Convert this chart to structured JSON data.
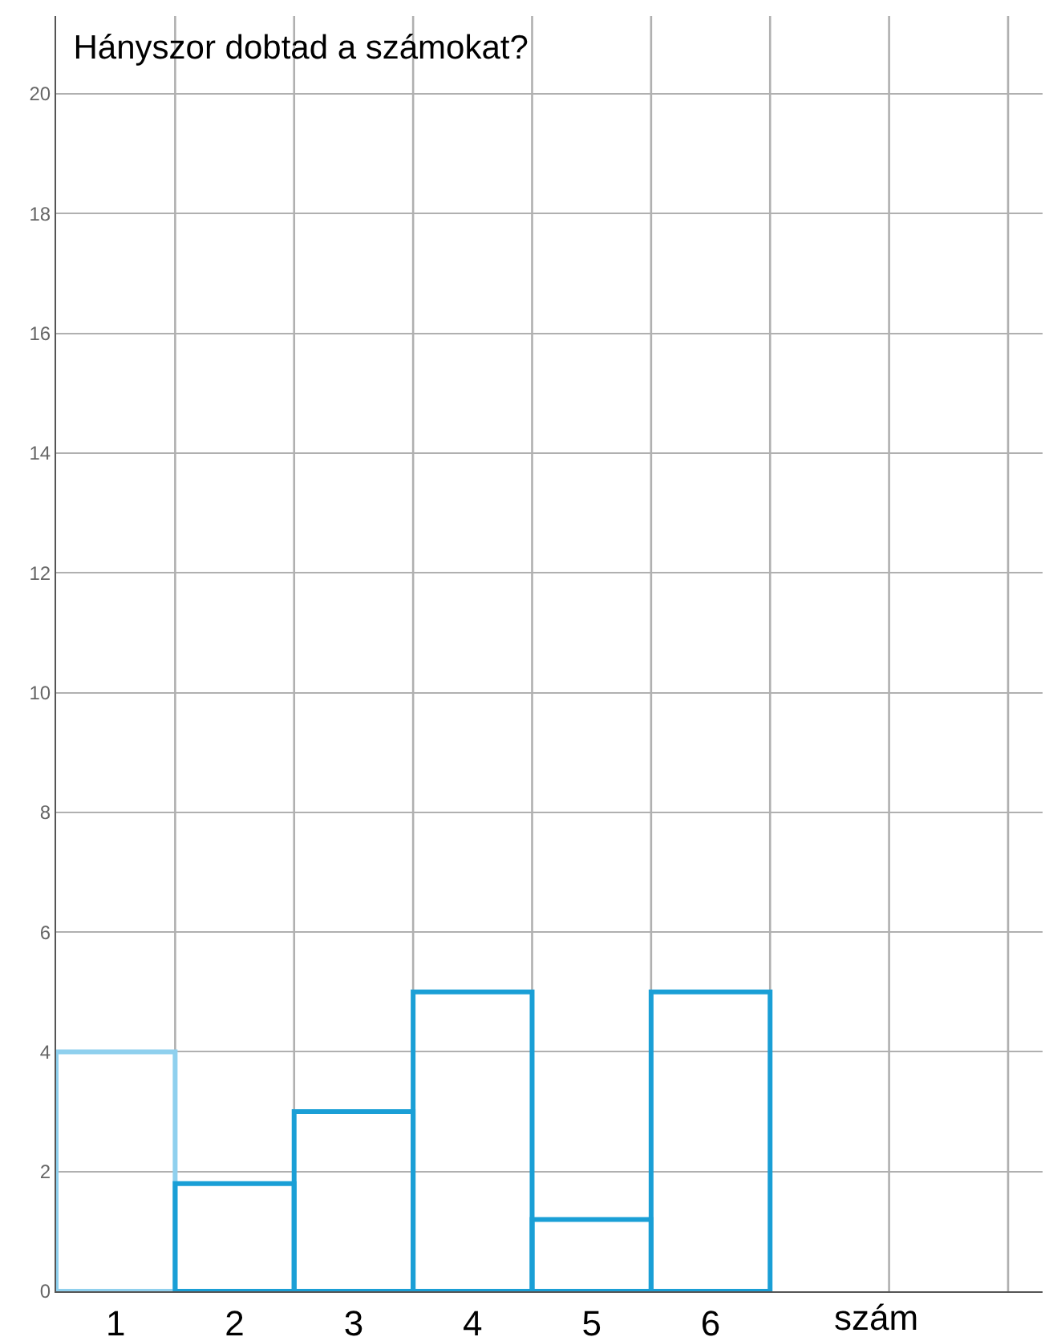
{
  "chart_data": {
    "type": "bar",
    "title": "Hányszor dobtad a számokat?",
    "xlabel": "szám",
    "categories": [
      "1",
      "2",
      "3",
      "4",
      "5",
      "6"
    ],
    "values": [
      4,
      1.8,
      3,
      5,
      1.2,
      5
    ],
    "colors": [
      "#8fd0ee",
      "#1a9fd6",
      "#1a9fd6",
      "#1a9fd6",
      "#1a9fd6",
      "#1a9fd6"
    ],
    "ylim": [
      0,
      21.3
    ],
    "yticks": [
      0,
      2,
      4,
      6,
      8,
      10,
      12,
      14,
      16,
      18,
      20
    ],
    "grid": true
  }
}
